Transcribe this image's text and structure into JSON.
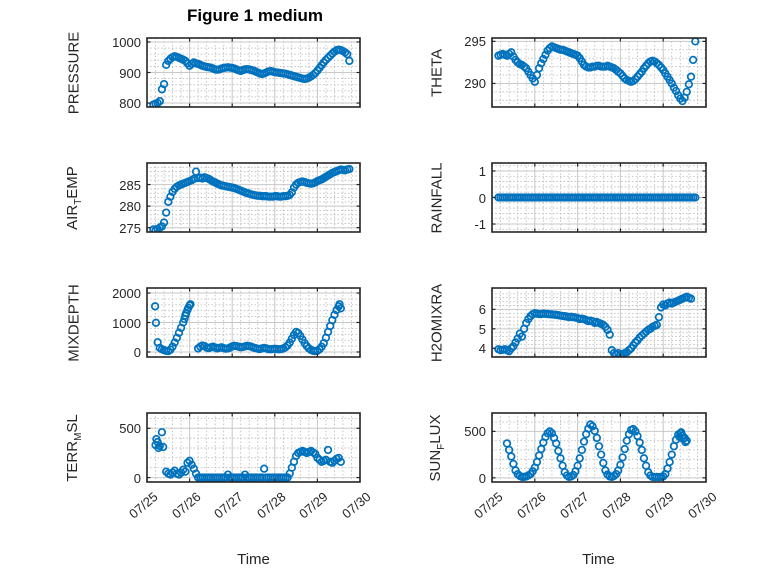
{
  "figure": {
    "title": "Figure 1 medium",
    "xlabel": "Time",
    "marker_color": "#0072BD",
    "background": "#ffffff",
    "axis_color": "#262626",
    "grid_color": "#c8c8c8",
    "minor_grid_color": "#bdbdbd",
    "xlim": [
      0,
      5
    ],
    "xtick_values": [
      0,
      1,
      2,
      3,
      4,
      5
    ],
    "xtick_labels": [
      "07/25",
      "07/26",
      "07/27",
      "07/28",
      "07/29",
      "07/30"
    ]
  },
  "chart_data": [
    {
      "type": "scatter",
      "name": "pressure",
      "row": 0,
      "col": 0,
      "ylabel": {
        "pre": "PRESSURE",
        "sub": "",
        "post": ""
      },
      "yticks": [
        800,
        900,
        1000
      ],
      "ylim": [
        787,
        1013
      ],
      "x_start": 0.15,
      "x_step": 0.05,
      "y": [
        795,
        798,
        800,
        806,
        845,
        862,
        925,
        938,
        945,
        950,
        953,
        951,
        948,
        945,
        942,
        938,
        930,
        922,
        928,
        933,
        930,
        928,
        925,
        922,
        920,
        918,
        917,
        916,
        913,
        910,
        909,
        910,
        913,
        915,
        916,
        917,
        916,
        915,
        913,
        910,
        907,
        905,
        908,
        910,
        911,
        910,
        908,
        906,
        903,
        900,
        897,
        895,
        897,
        900,
        903,
        905,
        903,
        901,
        900,
        899,
        898,
        897,
        896,
        894,
        892,
        890,
        888,
        886,
        884,
        882,
        880,
        879,
        880,
        883,
        887,
        892,
        898,
        906,
        915,
        924,
        933,
        941,
        948,
        955,
        962,
        968,
        973,
        975,
        973,
        970,
        966,
        960,
        938
      ]
    },
    {
      "type": "scatter",
      "name": "theta",
      "row": 0,
      "col": 1,
      "ylabel": {
        "pre": "THETA",
        "sub": "",
        "post": ""
      },
      "yticks": [
        290,
        295
      ],
      "ylim": [
        287.2,
        295.4
      ],
      "x_start": 0.15,
      "x_step": 0.05,
      "y": [
        293.3,
        293.4,
        293.5,
        293.4,
        293.3,
        293.5,
        293.7,
        293.2,
        292.8,
        292.5,
        292.3,
        292.2,
        292.0,
        291.8,
        291.4,
        291.0,
        290.6,
        290.2,
        291.0,
        291.8,
        292.4,
        292.9,
        293.4,
        293.9,
        294.2,
        294.4,
        294.3,
        294.2,
        294.1,
        294.0,
        294.0,
        293.9,
        293.8,
        293.7,
        293.6,
        293.5,
        293.4,
        293.3,
        293.0,
        292.6,
        292.2,
        292.0,
        291.9,
        291.9,
        292.0,
        292.0,
        292.1,
        292.1,
        292.0,
        292.0,
        292.0,
        292.1,
        292.0,
        291.9,
        291.8,
        291.6,
        291.4,
        291.2,
        290.9,
        290.6,
        290.4,
        290.3,
        290.2,
        290.3,
        290.5,
        290.8,
        291.1,
        291.4,
        291.8,
        292.1,
        292.4,
        292.6,
        292.7,
        292.6,
        292.4,
        292.2,
        291.9,
        291.6,
        291.2,
        290.8,
        290.4,
        290.0,
        289.5,
        289.1,
        288.6,
        288.2,
        287.9,
        288.3,
        289.0,
        289.9,
        290.8,
        292.8,
        295.0
      ]
    },
    {
      "type": "scatter",
      "name": "air-temp",
      "row": 1,
      "col": 0,
      "ylabel": {
        "pre": "AIR",
        "sub": "T",
        "post": "EMP"
      },
      "yticks": [
        275,
        280,
        285
      ],
      "ylim": [
        274,
        290
      ],
      "x_start": 0.15,
      "x_step": 0.05,
      "y": [
        274.6,
        274.4,
        274.7,
        275.0,
        275.3,
        276.2,
        278.5,
        281.0,
        282.2,
        283.3,
        284.0,
        284.5,
        284.8,
        285.0,
        285.2,
        285.4,
        285.6,
        285.8,
        286.0,
        286.3,
        288.0,
        286.5,
        286.6,
        286.4,
        286.7,
        286.5,
        286.3,
        286.0,
        285.7,
        285.5,
        285.2,
        285.0,
        284.8,
        284.7,
        284.6,
        284.5,
        284.4,
        284.3,
        284.2,
        284.0,
        283.8,
        283.6,
        283.4,
        283.2,
        283.0,
        282.9,
        282.7,
        282.6,
        282.5,
        282.4,
        282.4,
        282.3,
        282.3,
        282.3,
        282.2,
        282.2,
        282.2,
        282.3,
        282.3,
        282.2,
        282.2,
        282.3,
        282.3,
        282.4,
        282.6,
        283.2,
        284.3,
        285.0,
        285.4,
        285.6,
        285.7,
        285.6,
        285.4,
        285.3,
        285.2,
        285.3,
        285.5,
        285.8,
        286.0,
        286.2,
        286.5,
        286.8,
        287.1,
        287.4,
        287.7,
        287.9,
        288.1,
        288.3,
        288.5,
        288.4,
        288.3,
        288.5,
        288.6
      ]
    },
    {
      "type": "scatter",
      "name": "rainfall",
      "row": 1,
      "col": 1,
      "ylabel": {
        "pre": "RAINFALL",
        "sub": "",
        "post": ""
      },
      "yticks": [
        -1,
        0,
        1
      ],
      "ylim": [
        -1.3,
        1.3
      ],
      "x_start": 0.15,
      "x_step": 0.05,
      "y": [
        0,
        0,
        0,
        0,
        0,
        0,
        0,
        0,
        0,
        0,
        0,
        0,
        0,
        0,
        0,
        0,
        0,
        0,
        0,
        0,
        0,
        0,
        0,
        0,
        0,
        0,
        0,
        0,
        0,
        0,
        0,
        0,
        0,
        0,
        0,
        0,
        0,
        0,
        0,
        0,
        0,
        0,
        0,
        0,
        0,
        0,
        0,
        0,
        0,
        0,
        0,
        0,
        0,
        0,
        0,
        0,
        0,
        0,
        0,
        0,
        0,
        0,
        0,
        0,
        0,
        0,
        0,
        0,
        0,
        0,
        0,
        0,
        0,
        0,
        0,
        0,
        0,
        0,
        0,
        0,
        0,
        0,
        0,
        0,
        0,
        0,
        0,
        0,
        0,
        0,
        0,
        0,
        0
      ]
    },
    {
      "type": "scatter",
      "name": "mixdepth",
      "row": 2,
      "col": 0,
      "ylabel": {
        "pre": "MIXDEPTH",
        "sub": "",
        "post": ""
      },
      "yticks": [
        0,
        1000,
        2000
      ],
      "ylim": [
        -170,
        2170
      ],
      "x": [
        0.19,
        0.21,
        0.25,
        0.3,
        0.35,
        0.4,
        0.45,
        0.5,
        0.55,
        0.6,
        0.65,
        0.7,
        0.75,
        0.8,
        0.85,
        0.88,
        0.9,
        0.92,
        0.95,
        0.97,
        1.0,
        1.02,
        1.2,
        1.25,
        1.3,
        1.35,
        1.4,
        1.45,
        1.5,
        1.55,
        1.6,
        1.65,
        1.7,
        1.75,
        1.8,
        1.85,
        1.9,
        1.95,
        2.0,
        2.05,
        2.1,
        2.15,
        2.2,
        2.25,
        2.3,
        2.35,
        2.4,
        2.45,
        2.5,
        2.55,
        2.6,
        2.65,
        2.7,
        2.75,
        2.8,
        2.85,
        2.9,
        2.95,
        3.0,
        3.05,
        3.1,
        3.15,
        3.2,
        3.25,
        3.3,
        3.35,
        3.4,
        3.45,
        3.5,
        3.55,
        3.6,
        3.65,
        3.7,
        3.75,
        3.8,
        3.85,
        3.9,
        3.95,
        4.0,
        4.05,
        4.1,
        4.15,
        4.2,
        4.25,
        4.3,
        4.35,
        4.4,
        4.45,
        4.5,
        4.52,
        4.55
      ],
      "y": [
        1550,
        990,
        330,
        140,
        90,
        60,
        40,
        30,
        80,
        180,
        320,
        480,
        650,
        820,
        1000,
        1120,
        1230,
        1320,
        1430,
        1500,
        1580,
        1620,
        120,
        180,
        220,
        200,
        150,
        130,
        160,
        180,
        150,
        120,
        140,
        160,
        130,
        110,
        120,
        150,
        190,
        210,
        200,
        180,
        160,
        170,
        190,
        210,
        200,
        180,
        150,
        130,
        110,
        100,
        120,
        140,
        120,
        100,
        90,
        100,
        110,
        100,
        90,
        100,
        120,
        160,
        220,
        320,
        450,
        580,
        680,
        640,
        540,
        420,
        300,
        200,
        120,
        70,
        40,
        30,
        40,
        90,
        180,
        300,
        480,
        680,
        880,
        1080,
        1260,
        1420,
        1550,
        1620,
        1480
      ]
    },
    {
      "type": "scatter",
      "name": "h2omixra",
      "row": 2,
      "col": 1,
      "ylabel": {
        "pre": "H2OMIXRA",
        "sub": "",
        "post": ""
      },
      "yticks": [
        4,
        5,
        6
      ],
      "ylim": [
        3.55,
        7.1
      ],
      "x_start": 0.15,
      "x_step": 0.05,
      "y": [
        3.95,
        3.9,
        3.92,
        3.95,
        3.9,
        3.85,
        4.0,
        4.1,
        4.3,
        4.5,
        4.75,
        4.6,
        5.0,
        5.3,
        5.5,
        5.65,
        5.75,
        5.8,
        5.78,
        5.76,
        5.76,
        5.78,
        5.77,
        5.76,
        5.75,
        5.74,
        5.73,
        5.72,
        5.7,
        5.68,
        5.66,
        5.65,
        5.63,
        5.6,
        5.62,
        5.6,
        5.58,
        5.55,
        5.5,
        5.52,
        5.5,
        5.45,
        5.4,
        5.42,
        5.38,
        5.3,
        5.35,
        5.3,
        5.25,
        5.2,
        5.1,
        4.95,
        4.7,
        3.9,
        3.75,
        3.7,
        3.75,
        3.65,
        3.7,
        3.75,
        3.8,
        3.9,
        4.0,
        4.15,
        4.3,
        4.4,
        4.55,
        4.65,
        4.75,
        4.85,
        4.95,
        5.0,
        5.1,
        5.15,
        5.2,
        5.6,
        6.1,
        6.25,
        6.2,
        6.3,
        6.35,
        6.3,
        6.35,
        6.4,
        6.45,
        6.5,
        6.55,
        6.6,
        6.65,
        6.6,
        6.55
      ]
    },
    {
      "type": "scatter",
      "name": "terr-msl",
      "row": 3,
      "col": 0,
      "ylabel": {
        "pre": "TERR",
        "sub": "M",
        "post": "SL"
      },
      "yticks": [
        0,
        500
      ],
      "ylim": [
        -45,
        655
      ],
      "x": [
        0.2,
        0.22,
        0.25,
        0.27,
        0.3,
        0.35,
        0.38,
        0.45,
        0.5,
        0.55,
        0.6,
        0.65,
        0.7,
        0.75,
        0.8,
        0.85,
        0.9,
        0.95,
        1.0,
        1.05,
        1.1,
        1.15,
        1.2,
        1.25,
        1.3,
        1.35,
        1.4,
        1.45,
        1.5,
        1.55,
        1.6,
        1.65,
        1.7,
        1.75,
        1.8,
        1.85,
        1.9,
        1.95,
        2.0,
        2.05,
        2.1,
        2.15,
        2.2,
        2.25,
        2.3,
        2.35,
        2.4,
        2.45,
        2.5,
        2.55,
        2.6,
        2.65,
        2.7,
        2.75,
        2.8,
        2.85,
        2.9,
        2.95,
        3.0,
        3.05,
        3.1,
        3.15,
        3.2,
        3.25,
        3.3,
        3.35,
        3.4,
        3.45,
        3.5,
        3.55,
        3.6,
        3.65,
        3.7,
        3.75,
        3.8,
        3.85,
        3.9,
        3.95,
        4.0,
        4.05,
        4.1,
        4.15,
        4.2,
        4.25,
        4.3,
        4.35,
        4.4,
        4.45,
        4.5,
        4.55
      ],
      "y": [
        330,
        390,
        360,
        300,
        320,
        460,
        310,
        60,
        40,
        30,
        50,
        70,
        40,
        30,
        50,
        80,
        60,
        150,
        170,
        130,
        90,
        40,
        0,
        0,
        0,
        0,
        0,
        0,
        0,
        0,
        0,
        0,
        0,
        0,
        0,
        0,
        30,
        0,
        0,
        0,
        0,
        0,
        0,
        0,
        30,
        0,
        0,
        0,
        0,
        0,
        0,
        0,
        0,
        90,
        0,
        0,
        0,
        0,
        0,
        0,
        0,
        0,
        0,
        0,
        0,
        40,
        100,
        160,
        220,
        250,
        260,
        270,
        260,
        250,
        260,
        270,
        255,
        240,
        200,
        180,
        160,
        170,
        180,
        280,
        160,
        150,
        170,
        190,
        200,
        160
      ]
    },
    {
      "type": "scatter",
      "name": "sun-flux",
      "row": 3,
      "col": 1,
      "ylabel": {
        "pre": "SUN",
        "sub": "F",
        "post": "LUX"
      },
      "yticks": [
        0,
        500
      ],
      "ylim": [
        -45,
        698
      ],
      "x_start": 0.35,
      "x_step": 0.05,
      "y": [
        370,
        300,
        230,
        150,
        80,
        40,
        20,
        10,
        10,
        15,
        25,
        40,
        70,
        110,
        170,
        240,
        310,
        380,
        440,
        480,
        500,
        480,
        430,
        370,
        290,
        210,
        130,
        60,
        25,
        10,
        15,
        30,
        70,
        130,
        210,
        300,
        390,
        470,
        530,
        575,
        555,
        505,
        430,
        340,
        250,
        160,
        80,
        35,
        15,
        10,
        20,
        40,
        80,
        140,
        220,
        310,
        400,
        470,
        515,
        525,
        500,
        450,
        380,
        300,
        210,
        130,
        60,
        25,
        10,
        8,
        10,
        8,
        10,
        15,
        40,
        100,
        170,
        250,
        340,
        410,
        465,
        480,
        455,
        430,
        400
      ],
      "extra_points": [
        [
          4.38,
          440
        ],
        [
          4.42,
          490
        ],
        [
          4.47,
          420
        ],
        [
          4.52,
          385
        ]
      ]
    }
  ]
}
